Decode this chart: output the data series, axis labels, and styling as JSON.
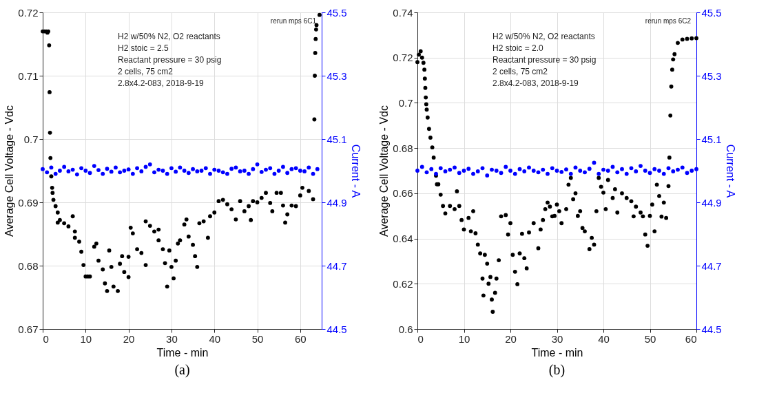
{
  "chart_data": [
    {
      "type": "scatter",
      "title": "(a)",
      "xlabel": "Time - min",
      "ylabel": "Average Cell Voltage - Vdc",
      "y2label": "Current - A",
      "xlim": [
        0,
        65
      ],
      "xticks": [
        0,
        10,
        20,
        30,
        40,
        50,
        60
      ],
      "ylim": [
        0.67,
        0.72
      ],
      "yticks": [
        0.67,
        0.68,
        0.69,
        0.7,
        0.71,
        0.72
      ],
      "y2lim": [
        44.5,
        45.5
      ],
      "y2ticks": [
        44.5,
        44.7,
        44.9,
        45.1,
        45.3,
        45.5
      ],
      "grid": true,
      "marker": "circle",
      "annotations": [
        "rerun mps 6C1",
        "H2 w/50% N2, O2 reactants",
        "H2 stoic = 2.5",
        "Reactant pressure = 30 psig",
        "2 cells, 75 cm2",
        "2.8x4.2-083,  2018-9-19"
      ],
      "series": [
        {
          "color": "#000000",
          "x": [
            0,
            0.4,
            0.8,
            1.1,
            1.3,
            1.5,
            1.6,
            1.7,
            1.8,
            2,
            2.2,
            2.3,
            2.5,
            3,
            3.5,
            3.5,
            4,
            5,
            6,
            7,
            7.5,
            7.5,
            8.5,
            9,
            9.5,
            10,
            10.5,
            11,
            12,
            12.5,
            13,
            14,
            14.5,
            15,
            15.5,
            16,
            16.5,
            17.5,
            18,
            18.5,
            19,
            20,
            20,
            20.5,
            21,
            22,
            23,
            24,
            24,
            25,
            26,
            27,
            27,
            28,
            28.5,
            29,
            29.5,
            30,
            30.5,
            31,
            31.5,
            32,
            33,
            33.5,
            34,
            35,
            35.5,
            36,
            36.5,
            37.5,
            38.5,
            39,
            40,
            41,
            42,
            43,
            44,
            45,
            46,
            47,
            48,
            48.5,
            49,
            50,
            51,
            52,
            53,
            53.5,
            54.5,
            55.5,
            56,
            56.5,
            57,
            58,
            59,
            60,
            60.5,
            62,
            63,
            63.3,
            63.4,
            63.5,
            63.6,
            63.7,
            63.8,
            64.5
          ],
          "values": [
            0.717,
            0.717,
            0.717,
            0.7168,
            0.717,
            0.7148,
            0.7074,
            0.701,
            0.697,
            0.6941,
            0.6923,
            0.6915,
            0.6904,
            0.6894,
            0.6884,
            0.6868,
            0.6872,
            0.6867,
            0.6862,
            0.6878,
            0.6844,
            0.6854,
            0.6838,
            0.6822,
            0.6801,
            0.6783,
            0.6783,
            0.6783,
            0.683,
            0.6835,
            0.6808,
            0.6794,
            0.6772,
            0.676,
            0.6824,
            0.6798,
            0.6767,
            0.676,
            0.6803,
            0.6815,
            0.679,
            0.6782,
            0.6814,
            0.686,
            0.6851,
            0.6826,
            0.682,
            0.6801,
            0.687,
            0.6863,
            0.6854,
            0.6857,
            0.684,
            0.6826,
            0.6804,
            0.6767,
            0.6824,
            0.6798,
            0.678,
            0.6808,
            0.6835,
            0.684,
            0.6865,
            0.6873,
            0.6846,
            0.6833,
            0.6815,
            0.6798,
            0.6867,
            0.687,
            0.6844,
            0.6878,
            0.6884,
            0.6902,
            0.6904,
            0.6897,
            0.6889,
            0.6873,
            0.6902,
            0.6886,
            0.6894,
            0.6872,
            0.6902,
            0.69,
            0.6907,
            0.6915,
            0.6899,
            0.6886,
            0.6915,
            0.6915,
            0.6895,
            0.6868,
            0.6881,
            0.6895,
            0.6894,
            0.6911,
            0.6923,
            0.6918,
            0.6905,
            0.7031,
            0.71,
            0.7136,
            0.7158,
            0.7173,
            0.718,
            0.7196
          ]
        },
        {
          "color": "#0000ff",
          "axis": "y2",
          "x": [
            0,
            1,
            2,
            3,
            4,
            5,
            6,
            7,
            8,
            9,
            10,
            11,
            12,
            13,
            14,
            15,
            16,
            17,
            18,
            19,
            20,
            21,
            22,
            23,
            24,
            25,
            26,
            27,
            28,
            29,
            30,
            31,
            32,
            33,
            34,
            35,
            36,
            37,
            38,
            39,
            40,
            41,
            42,
            43,
            44,
            45,
            46,
            47,
            48,
            49,
            50,
            51,
            52,
            53,
            54,
            55,
            56,
            57,
            58,
            59,
            60,
            61,
            62,
            63,
            64
          ],
          "values": [
            45.005,
            44.995,
            45.01,
            44.99,
            45.0,
            45.012,
            44.998,
            45.003,
            44.988,
            45.008,
            45.0,
            44.993,
            45.015,
            45.002,
            44.99,
            45.006,
            44.997,
            45.01,
            44.995,
            45.0,
            45.004,
            44.99,
            45.008,
            44.998,
            45.012,
            45.02,
            44.995,
            45.003,
            45.0,
            44.99,
            45.008,
            44.997,
            45.01,
            45.0,
            44.993,
            45.005,
            44.998,
            45.0,
            45.008,
            44.99,
            45.003,
            45.0,
            44.995,
            44.99,
            45.006,
            45.01,
            44.998,
            45.0,
            44.99,
            45.005,
            45.02,
            44.996,
            45.003,
            45.008,
            44.99,
            45.0,
            45.012,
            44.993,
            45.005,
            45.008,
            45.0,
            44.998,
            45.01,
            44.99,
            45.005
          ]
        }
      ]
    },
    {
      "type": "scatter",
      "title": "(b)",
      "xlabel": "Time - min",
      "ylabel": "Average Cell Voltage - Vdc",
      "y2label": "Current - A",
      "xlim": [
        0,
        60
      ],
      "xticks": [
        0,
        10,
        20,
        30,
        40,
        50,
        60
      ],
      "ylim": [
        0.6,
        0.74
      ],
      "yticks": [
        0.6,
        0.62,
        0.64,
        0.66,
        0.68,
        0.7,
        0.72,
        0.74
      ],
      "y2lim": [
        44.5,
        45.5
      ],
      "y2ticks": [
        44.5,
        44.7,
        44.9,
        45.1,
        45.3,
        45.5
      ],
      "grid": true,
      "marker": "circle",
      "annotations": [
        "rerun mps 6C2",
        "H2 w/50% N2, O2 reactants",
        "H2 stoic = 2.0",
        "Reactant pressure = 30 psig",
        "2 cells, 75 cm2",
        "2.8x4.2-083,  2018-9-19"
      ],
      "series": [
        {
          "color": "#000000",
          "x": [
            0,
            0.3,
            0.7,
            1,
            1.3,
            1.5,
            1.6,
            1.7,
            1.8,
            1.9,
            2,
            2.2,
            2.5,
            2.8,
            3.2,
            3.5,
            4,
            4.2,
            4.5,
            5,
            5.5,
            6,
            7,
            8,
            8.5,
            9,
            9.5,
            10,
            11,
            11.5,
            12,
            12.5,
            13,
            13.5,
            14,
            14.2,
            14.5,
            15,
            15.3,
            15.7,
            16,
            16.2,
            16.7,
            17,
            17.5,
            18,
            19,
            19.5,
            20,
            20.5,
            21,
            21.5,
            22,
            22.5,
            23,
            23.5,
            24,
            25,
            26,
            26.5,
            27,
            27.5,
            28,
            28.5,
            29,
            29.5,
            30,
            30.5,
            31,
            32,
            32.5,
            33,
            33.5,
            34,
            34.5,
            35,
            35.5,
            36,
            37,
            37.5,
            38,
            38.5,
            39,
            39.5,
            40,
            40.5,
            41,
            42,
            42.5,
            43,
            44,
            45,
            46,
            46.5,
            47,
            48,
            48.5,
            49,
            49.5,
            50,
            50.5,
            51,
            51.5,
            52,
            52.5,
            53,
            53.5,
            54,
            54.2,
            54.4,
            54.6,
            54.8,
            55,
            55.3,
            56,
            57,
            58,
            59,
            60
          ],
          "values": [
            0.718,
            0.7213,
            0.7228,
            0.72,
            0.7177,
            0.7147,
            0.7107,
            0.7066,
            0.7024,
            0.6994,
            0.697,
            0.6935,
            0.6885,
            0.6846,
            0.6803,
            0.6758,
            0.6678,
            0.664,
            0.664,
            0.6594,
            0.6544,
            0.6511,
            0.6544,
            0.653,
            0.6609,
            0.6544,
            0.6482,
            0.644,
            0.6491,
            0.6432,
            0.6521,
            0.6423,
            0.6373,
            0.6334,
            0.6223,
            0.6148,
            0.6328,
            0.6289,
            0.62,
            0.623,
            0.613,
            0.6076,
            0.616,
            0.6223,
            0.6304,
            0.6498,
            0.6504,
            0.6418,
            0.6468,
            0.6328,
            0.6253,
            0.6198,
            0.6334,
            0.6421,
            0.6313,
            0.6268,
            0.6427,
            0.6468,
            0.6357,
            0.644,
            0.6482,
            0.653,
            0.6559,
            0.6541,
            0.6498,
            0.65,
            0.655,
            0.6521,
            0.6468,
            0.653,
            0.6638,
            0.6668,
            0.6574,
            0.66,
            0.65,
            0.6521,
            0.6447,
            0.6432,
            0.6353,
            0.6403,
            0.6373,
            0.6521,
            0.6668,
            0.6629,
            0.6603,
            0.653,
            0.6659,
            0.6579,
            0.6618,
            0.6515,
            0.66,
            0.6579,
            0.6565,
            0.6498,
            0.6541,
            0.6515,
            0.6498,
            0.6418,
            0.6368,
            0.65,
            0.655,
            0.6432,
            0.6638,
            0.6588,
            0.6497,
            0.6559,
            0.6491,
            0.6632,
            0.6758,
            0.6944,
            0.7072,
            0.7147,
            0.7192,
            0.7215,
            0.7265,
            0.728,
            0.7283,
            0.7285,
            0.7286
          ]
        },
        {
          "color": "#0000ff",
          "axis": "y2",
          "x": [
            0,
            1,
            2,
            3,
            4,
            5,
            6,
            7,
            8,
            9,
            10,
            11,
            12,
            13,
            14,
            15,
            16,
            17,
            18,
            19,
            20,
            21,
            22,
            23,
            24,
            25,
            26,
            27,
            28,
            29,
            30,
            31,
            32,
            33,
            34,
            35,
            36,
            37,
            38,
            39,
            40,
            41,
            42,
            43,
            44,
            45,
            46,
            47,
            48,
            49,
            50,
            51,
            52,
            53,
            54,
            55,
            56,
            57,
            58,
            59,
            60
          ],
          "values": [
            45.0,
            45.012,
            44.995,
            45.005,
            44.99,
            45.008,
            44.998,
            45.003,
            45.01,
            44.993,
            45.0,
            45.006,
            44.99,
            44.998,
            45.008,
            44.985,
            45.003,
            45.0,
            44.993,
            45.012,
            45.0,
            44.99,
            45.005,
            44.998,
            45.01,
            45.0,
            44.995,
            45.003,
            44.99,
            45.008,
            45.0,
            44.996,
            45.004,
            44.99,
            45.01,
            45.0,
            44.995,
            45.006,
            45.025,
            44.99,
            45.003,
            45.0,
            45.012,
            44.995,
            45.005,
            44.99,
            45.008,
            44.998,
            45.015,
            45.0,
            44.993,
            45.005,
            45.0,
            44.99,
            45.008,
            44.998,
            45.003,
            45.01,
            44.993,
            45.0,
            45.005
          ]
        }
      ]
    }
  ]
}
